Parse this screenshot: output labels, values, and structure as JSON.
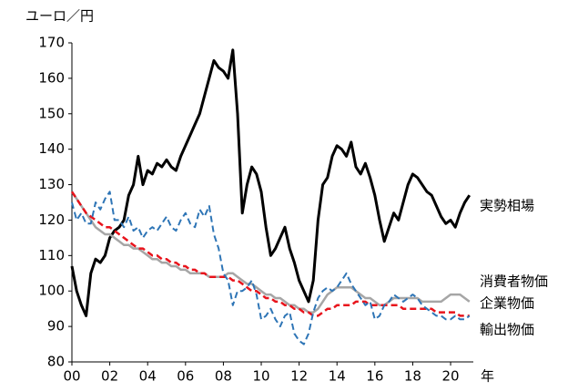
{
  "chart_data": {
    "type": "line",
    "ylabel": "ユーロ／円",
    "xlabel": "年",
    "x": [
      2000,
      2000.25,
      2000.5,
      2000.75,
      2001,
      2001.25,
      2001.5,
      2001.75,
      2002,
      2002.25,
      2002.5,
      2002.75,
      2003,
      2003.25,
      2003.5,
      2003.75,
      2004,
      2004.25,
      2004.5,
      2004.75,
      2005,
      2005.25,
      2005.5,
      2005.75,
      2006,
      2006.25,
      2006.5,
      2006.75,
      2007,
      2007.25,
      2007.5,
      2007.75,
      2008,
      2008.25,
      2008.5,
      2008.75,
      2009,
      2009.25,
      2009.5,
      2009.75,
      2010,
      2010.25,
      2010.5,
      2010.75,
      2011,
      2011.25,
      2011.5,
      2011.75,
      2012,
      2012.25,
      2012.5,
      2012.75,
      2013,
      2013.25,
      2013.5,
      2013.75,
      2014,
      2014.25,
      2014.5,
      2014.75,
      2015,
      2015.25,
      2015.5,
      2015.75,
      2016,
      2016.25,
      2016.5,
      2016.75,
      2017,
      2017.25,
      2017.5,
      2017.75,
      2018,
      2018.25,
      2018.5,
      2018.75,
      2019,
      2019.25,
      2019.5,
      2019.75,
      2020,
      2020.25,
      2020.5,
      2020.75,
      2021
    ],
    "series": [
      {
        "name": "実勢相場",
        "color": "#000000",
        "width": 3,
        "dashed": false,
        "values": [
          107,
          100,
          96,
          93,
          105,
          109,
          108,
          110,
          115,
          117,
          118,
          120,
          127,
          130,
          138,
          130,
          134,
          133,
          136,
          135,
          137,
          135,
          134,
          138,
          141,
          144,
          147,
          150,
          155,
          160,
          165,
          163,
          162,
          160,
          168,
          150,
          122,
          130,
          135,
          133,
          128,
          118,
          110,
          112,
          115,
          118,
          112,
          108,
          103,
          100,
          97,
          103,
          120,
          130,
          132,
          138,
          141,
          140,
          138,
          142,
          135,
          133,
          136,
          132,
          127,
          120,
          114,
          118,
          122,
          120,
          125,
          130,
          133,
          132,
          130,
          128,
          127,
          124,
          121,
          119,
          120,
          118,
          122,
          125,
          127
        ]
      },
      {
        "name": "企業物価",
        "color": "#a6a6a6",
        "width": 2.5,
        "dashed": false,
        "values": [
          128,
          126,
          124,
          122,
          120,
          118,
          117,
          116,
          116,
          115,
          114,
          113,
          113,
          112,
          112,
          111,
          110,
          109,
          109,
          108,
          108,
          107,
          107,
          106,
          106,
          105,
          105,
          105,
          105,
          104,
          104,
          104,
          104,
          105,
          105,
          104,
          103,
          102,
          102,
          101,
          100,
          99,
          99,
          98,
          98,
          97,
          96,
          96,
          95,
          95,
          94,
          94,
          95,
          97,
          99,
          100,
          101,
          101,
          101,
          101,
          100,
          99,
          98,
          98,
          97,
          96,
          96,
          97,
          98,
          98,
          98,
          98,
          98,
          98,
          97,
          97,
          97,
          97,
          97,
          98,
          99,
          99,
          99,
          98,
          97
        ]
      },
      {
        "name": "消費者物価",
        "color": "#e8141c",
        "width": 2.5,
        "dashed": true,
        "values": [
          128,
          126,
          124,
          122,
          121,
          120,
          119,
          118,
          118,
          117,
          116,
          115,
          114,
          113,
          112,
          112,
          111,
          110,
          110,
          109,
          109,
          108,
          108,
          107,
          107,
          106,
          106,
          105,
          105,
          104,
          104,
          104,
          104,
          104,
          103,
          103,
          102,
          101,
          100,
          100,
          99,
          98,
          98,
          97,
          97,
          96,
          96,
          95,
          95,
          94,
          94,
          93,
          93,
          94,
          95,
          95,
          96,
          96,
          96,
          96,
          97,
          97,
          97,
          96,
          96,
          96,
          96,
          96,
          96,
          96,
          95,
          95,
          95,
          95,
          95,
          95,
          95,
          94,
          94,
          94,
          94,
          94,
          93,
          93,
          93
        ]
      },
      {
        "name": "輸出物価",
        "color": "#2e75b6",
        "width": 2,
        "dashed": true,
        "values": [
          125,
          120,
          122,
          119,
          119,
          125,
          123,
          126,
          128,
          120,
          120,
          118,
          121,
          117,
          118,
          115,
          117,
          118,
          117,
          119,
          121,
          118,
          117,
          120,
          122,
          119,
          118,
          123,
          121,
          124,
          116,
          112,
          105,
          103,
          96,
          100,
          100,
          101,
          103,
          99,
          92,
          93,
          95,
          92,
          90,
          93,
          94,
          88,
          86,
          85,
          88,
          94,
          98,
          100,
          101,
          100,
          101,
          103,
          105,
          102,
          100,
          98,
          96,
          97,
          92,
          93,
          96,
          97,
          99,
          98,
          97,
          98,
          99,
          98,
          96,
          95,
          94,
          93,
          93,
          92,
          92,
          93,
          92,
          92,
          93
        ]
      }
    ],
    "xlim": [
      2000,
      2021.2
    ],
    "ylim": [
      80,
      170
    ],
    "yticks": [
      80,
      90,
      100,
      110,
      120,
      130,
      140,
      150,
      160,
      170
    ],
    "xticks": [
      {
        "value": 2000,
        "label": "00"
      },
      {
        "value": 2002,
        "label": "02"
      },
      {
        "value": 2004,
        "label": "04"
      },
      {
        "value": 2006,
        "label": "06"
      },
      {
        "value": 2008,
        "label": "08"
      },
      {
        "value": 2010,
        "label": "10"
      },
      {
        "value": 2012,
        "label": "12"
      },
      {
        "value": 2014,
        "label": "14"
      },
      {
        "value": 2016,
        "label": "16"
      },
      {
        "value": 2018,
        "label": "18"
      },
      {
        "value": 2020,
        "label": "20"
      }
    ]
  }
}
